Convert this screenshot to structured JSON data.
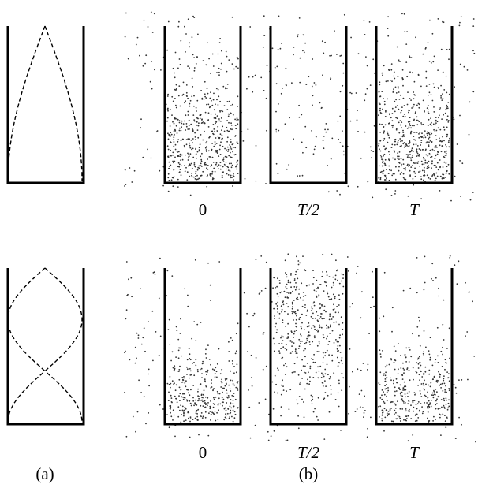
{
  "panel_labels": [
    "(a)",
    "(b)"
  ],
  "rows": [
    {
      "times": [
        "0",
        "T/2",
        "T"
      ]
    },
    {
      "times": [
        "0",
        "T/2",
        "T"
      ]
    }
  ]
}
